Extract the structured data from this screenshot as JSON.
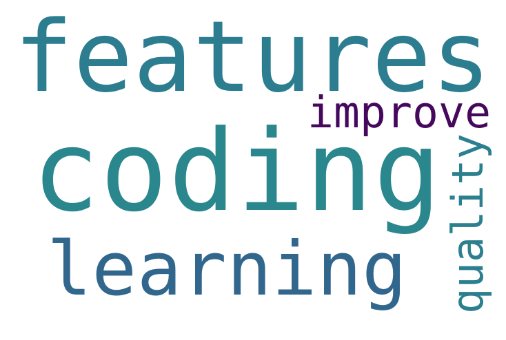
{
  "words": [
    {
      "text": "features",
      "color": "#2c7d8f"
    },
    {
      "text": "coding",
      "color": "#2a878d"
    },
    {
      "text": "improve",
      "color": "#46085c"
    },
    {
      "text": "learning",
      "color": "#32678d"
    },
    {
      "text": "quality",
      "color": "#2b7f8e"
    }
  ]
}
